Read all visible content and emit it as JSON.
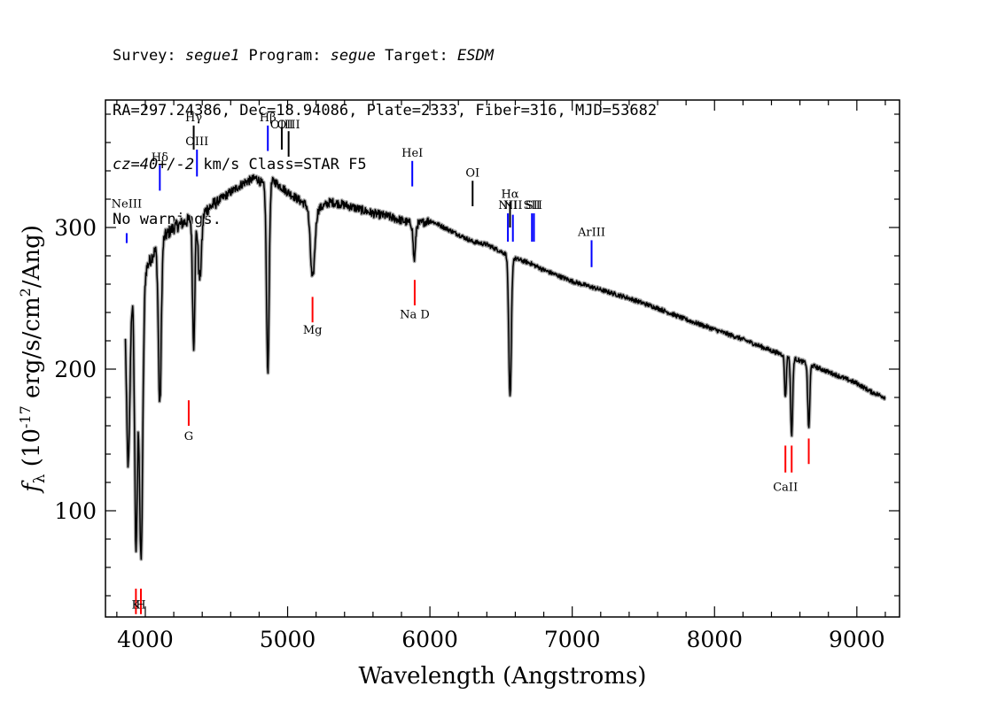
{
  "header": {
    "line1": [
      {
        "text": "Survey: ",
        "italic": false
      },
      {
        "text": "segue1",
        "italic": true
      },
      {
        "text": " Program: ",
        "italic": false
      },
      {
        "text": "segue",
        "italic": true
      },
      {
        "text": " Target: ",
        "italic": false
      },
      {
        "text": "ESDM",
        "italic": true
      }
    ],
    "line2": "RA=297.24386, Dec=18.94086, Plate=2333, Fiber=316, MJD=53682",
    "line3": [
      {
        "text": "cz=40+/-2",
        "italic": true
      },
      {
        "text": " km/s Class=STAR F5",
        "italic": false
      }
    ],
    "line4": "No warnings."
  },
  "chart_data": {
    "type": "line",
    "xlabel": "Wavelength (Angstroms)",
    "ylabel": "f_λ (10^-17 erg/s/cm^2/Ang)",
    "xlim": [
      3720,
      9300
    ],
    "ylim": [
      25,
      390
    ],
    "xticks": [
      4000,
      5000,
      6000,
      7000,
      8000,
      9000
    ],
    "yticks": [
      100,
      200,
      300
    ],
    "colors": {
      "spectrum": "#000000",
      "error_band": "#aaaaaa",
      "emission": "#0000ff",
      "absorption": "#ff0000",
      "neutral": "#000000"
    },
    "continuum": [
      [
        3860,
        250
      ],
      [
        3900,
        255
      ],
      [
        4000,
        270
      ],
      [
        4100,
        290
      ],
      [
        4200,
        300
      ],
      [
        4300,
        305
      ],
      [
        4400,
        310
      ],
      [
        4500,
        318
      ],
      [
        4600,
        325
      ],
      [
        4700,
        332
      ],
      [
        4780,
        335
      ],
      [
        4850,
        328
      ],
      [
        4900,
        333
      ],
      [
        5000,
        325
      ],
      [
        5100,
        318
      ],
      [
        5200,
        312
      ],
      [
        5300,
        318
      ],
      [
        5400,
        316
      ],
      [
        5500,
        313
      ],
      [
        5600,
        310
      ],
      [
        5700,
        308
      ],
      [
        5800,
        305
      ],
      [
        5900,
        302
      ],
      [
        6000,
        305
      ],
      [
        6100,
        300
      ],
      [
        6200,
        295
      ],
      [
        6300,
        290
      ],
      [
        6400,
        288
      ],
      [
        6500,
        283
      ],
      [
        6600,
        278
      ],
      [
        6700,
        275
      ],
      [
        6800,
        270
      ],
      [
        6900,
        266
      ],
      [
        7000,
        262
      ],
      [
        7200,
        256
      ],
      [
        7400,
        250
      ],
      [
        7600,
        243
      ],
      [
        7800,
        235
      ],
      [
        8000,
        228
      ],
      [
        8200,
        221
      ],
      [
        8400,
        213
      ],
      [
        8600,
        206
      ],
      [
        8800,
        198
      ],
      [
        9000,
        190
      ],
      [
        9100,
        184
      ],
      [
        9200,
        180
      ]
    ],
    "absorption_features": [
      [
        3880,
        120,
        12
      ],
      [
        3935,
        185,
        10
      ],
      [
        3970,
        200,
        12
      ],
      [
        4102,
        115,
        10
      ],
      [
        4340,
        90,
        8
      ],
      [
        4383,
        45,
        12
      ],
      [
        4861,
        130,
        9
      ],
      [
        5175,
        50,
        15
      ],
      [
        5890,
        25,
        8
      ],
      [
        6563,
        100,
        9
      ],
      [
        8498,
        30,
        6
      ],
      [
        8542,
        55,
        7
      ],
      [
        8662,
        45,
        7
      ]
    ],
    "line_labels": [
      {
        "label": "NeIII",
        "wavelength": 3869,
        "color": "#0000ff",
        "y1": 296,
        "y2": 289,
        "text_y": 314
      },
      {
        "label": "Hδ",
        "wavelength": 4102,
        "color": "#0000ff",
        "y1": 344,
        "y2": 326,
        "text_y": 347
      },
      {
        "label": "Hγ",
        "wavelength": 4340,
        "color": "#000000",
        "y1": 372,
        "y2": 355,
        "text_y": 375
      },
      {
        "label": "OIII",
        "wavelength": 4363,
        "color": "#0000ff",
        "y1": 355,
        "y2": 336,
        "text_y": 358
      },
      {
        "label": "Hβ",
        "wavelength": 4861,
        "color": "#0000ff",
        "y1": 372,
        "y2": 354,
        "text_y": 375
      },
      {
        "label": "OIII",
        "wavelength": 4959,
        "color": "#000000",
        "y1": 371,
        "y2": 355,
        "text_y": 370
      },
      {
        "label": "OIII",
        "wavelength": 5007,
        "color": "#000000",
        "y1": 368,
        "y2": 350,
        "text_y": 370
      },
      {
        "label": "Mg",
        "wavelength": 5175,
        "color": "#ff0000",
        "y1": 251,
        "y2": 233,
        "text_y": 225
      },
      {
        "label": "HeI",
        "wavelength": 5876,
        "color": "#0000ff",
        "y1": 347,
        "y2": 329,
        "text_y": 350
      },
      {
        "label": "Na D",
        "wavelength": 5893,
        "color": "#ff0000",
        "y1": 263,
        "y2": 245,
        "text_y": 236
      },
      {
        "label": "OI",
        "wavelength": 6300,
        "color": "#000000",
        "y1": 333,
        "y2": 315,
        "text_y": 336
      },
      {
        "label": "NII",
        "wavelength": 6548,
        "color": "#0000ff",
        "y1": 310,
        "y2": 290,
        "text_y": 313
      },
      {
        "label": "Hα",
        "wavelength": 6563,
        "color": "#000000",
        "y1": 318,
        "y2": 300,
        "text_y": 321
      },
      {
        "label": "NII",
        "wavelength": 6583,
        "color": "#0000ff",
        "y1": 309,
        "y2": 290,
        "text_y": 313
      },
      {
        "label": "SII",
        "wavelength": 6717,
        "color": "#0000ff",
        "y1": 310,
        "y2": 290,
        "text_y": 313
      },
      {
        "label": "SII",
        "wavelength": 6731,
        "color": "#0000ff",
        "y1": 310,
        "y2": 290,
        "text_y": 313
      },
      {
        "label": "ArIII",
        "wavelength": 7136,
        "color": "#0000ff",
        "y1": 291,
        "y2": 272,
        "text_y": 294
      },
      {
        "label": "G",
        "wavelength": 4305,
        "color": "#ff0000",
        "y1": 178,
        "y2": 160,
        "text_y": 150
      },
      {
        "label": "CaII",
        "wavelength": 8498,
        "color": "#ff0000",
        "y1": 146,
        "y2": 127,
        "text_y": 114
      },
      {
        "label": "",
        "wavelength": 8542,
        "color": "#ff0000",
        "y1": 146,
        "y2": 127,
        "text_y": 114
      },
      {
        "label": "",
        "wavelength": 8662,
        "color": "#ff0000",
        "y1": 151,
        "y2": 133,
        "text_y": 114
      },
      {
        "label": "K",
        "wavelength": 3934,
        "color": "#ff0000",
        "y1": 45,
        "y2": 27,
        "text_y": 31
      },
      {
        "label": "H",
        "wavelength": 3969,
        "color": "#ff0000",
        "y1": 45,
        "y2": 27,
        "text_y": 31
      }
    ]
  }
}
